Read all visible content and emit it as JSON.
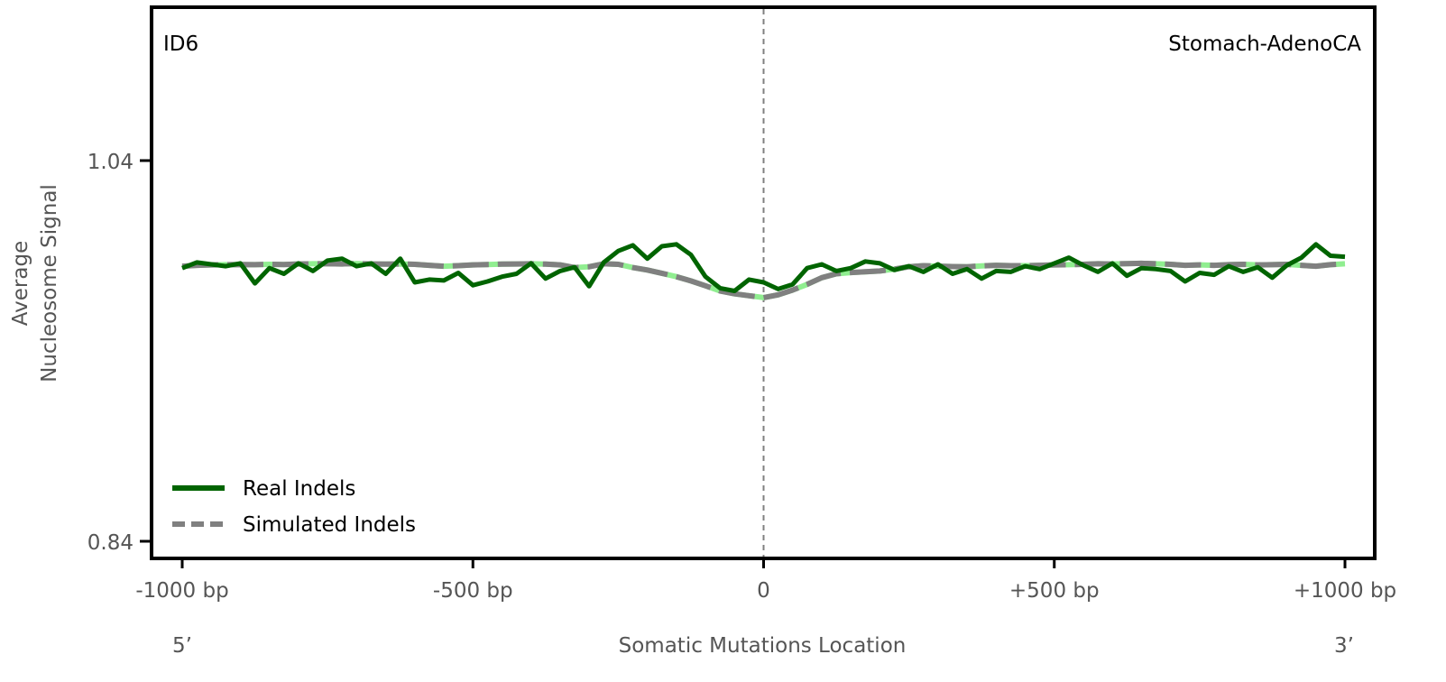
{
  "chart_data": {
    "type": "line",
    "title_left": "ID6",
    "title_right": "Stomach-AdenoCA",
    "xlabel": "Somatic Mutations Location",
    "ylabel_line1": "Average",
    "ylabel_line2": "Nucleosome Signal",
    "five_prime": "5’",
    "three_prime": "3’",
    "xlim": [
      -1000,
      1000
    ],
    "ylim": [
      0.84,
      1.04
    ],
    "x_ticks": [
      {
        "value": -1000,
        "label": "-1000 bp"
      },
      {
        "value": -500,
        "label": "-500 bp"
      },
      {
        "value": 0,
        "label": "0"
      },
      {
        "value": 500,
        "label": "+500 bp"
      },
      {
        "value": 1000,
        "label": "+1000 bp"
      }
    ],
    "y_ticks": [
      {
        "value": 1.04,
        "label": "1.04"
      },
      {
        "value": 0.84,
        "label": "0.84"
      }
    ],
    "vline_x": 0,
    "legend_position": "lower-left",
    "x": [
      -1000,
      -975,
      -950,
      -925,
      -900,
      -875,
      -850,
      -825,
      -800,
      -775,
      -750,
      -725,
      -700,
      -675,
      -650,
      -625,
      -600,
      -575,
      -550,
      -525,
      -500,
      -475,
      -450,
      -425,
      -400,
      -375,
      -350,
      -325,
      -300,
      -275,
      -250,
      -225,
      -200,
      -175,
      -150,
      -125,
      -100,
      -75,
      -50,
      -25,
      0,
      25,
      50,
      75,
      100,
      125,
      150,
      175,
      200,
      225,
      250,
      275,
      300,
      325,
      350,
      375,
      400,
      425,
      450,
      475,
      500,
      525,
      550,
      575,
      600,
      625,
      650,
      675,
      700,
      725,
      750,
      775,
      800,
      825,
      850,
      875,
      900,
      925,
      950,
      975,
      1000
    ],
    "series": [
      {
        "name": "Real Indels",
        "color": "#006400",
        "style": "solid",
        "values": [
          0.9835,
          0.9865,
          0.9855,
          0.9845,
          0.986,
          0.9755,
          0.9835,
          0.9805,
          0.986,
          0.982,
          0.9875,
          0.9885,
          0.9845,
          0.986,
          0.9805,
          0.9885,
          0.976,
          0.9775,
          0.977,
          0.981,
          0.9745,
          0.9765,
          0.979,
          0.9805,
          0.986,
          0.978,
          0.982,
          0.984,
          0.974,
          0.9865,
          0.9925,
          0.9955,
          0.9885,
          0.995,
          0.996,
          0.9905,
          0.979,
          0.973,
          0.9715,
          0.9775,
          0.976,
          0.9725,
          0.975,
          0.9835,
          0.9855,
          0.982,
          0.9835,
          0.987,
          0.986,
          0.9825,
          0.9845,
          0.9815,
          0.9855,
          0.9805,
          0.983,
          0.978,
          0.982,
          0.9815,
          0.9845,
          0.983,
          0.986,
          0.989,
          0.985,
          0.9815,
          0.986,
          0.9795,
          0.9835,
          0.983,
          0.982,
          0.9765,
          0.981,
          0.98,
          0.9845,
          0.9815,
          0.984,
          0.9785,
          0.985,
          0.989,
          0.996,
          0.99,
          0.9895
        ],
        "x_range": [
          -1000,
          1000
        ]
      },
      {
        "name": "Simulated Indels",
        "color": "#808080",
        "style": "dashed",
        "values": [
          0.9845,
          0.985,
          0.9852,
          0.9853,
          0.9854,
          0.9853,
          0.9855,
          0.9854,
          0.9857,
          0.9858,
          0.9858,
          0.9857,
          0.9859,
          0.9857,
          0.9856,
          0.9857,
          0.9855,
          0.985,
          0.9845,
          0.9848,
          0.9852,
          0.9854,
          0.9856,
          0.9857,
          0.9858,
          0.9856,
          0.9852,
          0.9838,
          0.9842,
          0.9858,
          0.9855,
          0.9838,
          0.9825,
          0.9808,
          0.979,
          0.9768,
          0.9742,
          0.9715,
          0.97,
          0.969,
          0.968,
          0.9695,
          0.972,
          0.975,
          0.9785,
          0.9805,
          0.9812,
          0.9816,
          0.982,
          0.983,
          0.9842,
          0.9848,
          0.9845,
          0.9843,
          0.9842,
          0.9847,
          0.985,
          0.9848,
          0.9848,
          0.985,
          0.9852,
          0.9853,
          0.9855,
          0.9858,
          0.9857,
          0.9859,
          0.986,
          0.9858,
          0.9855,
          0.985,
          0.9852,
          0.985,
          0.9853,
          0.9855,
          0.9852,
          0.9853,
          0.9855,
          0.985,
          0.9845,
          0.9853,
          0.9858
        ],
        "x_range": [
          -1000,
          1000
        ]
      }
    ]
  }
}
